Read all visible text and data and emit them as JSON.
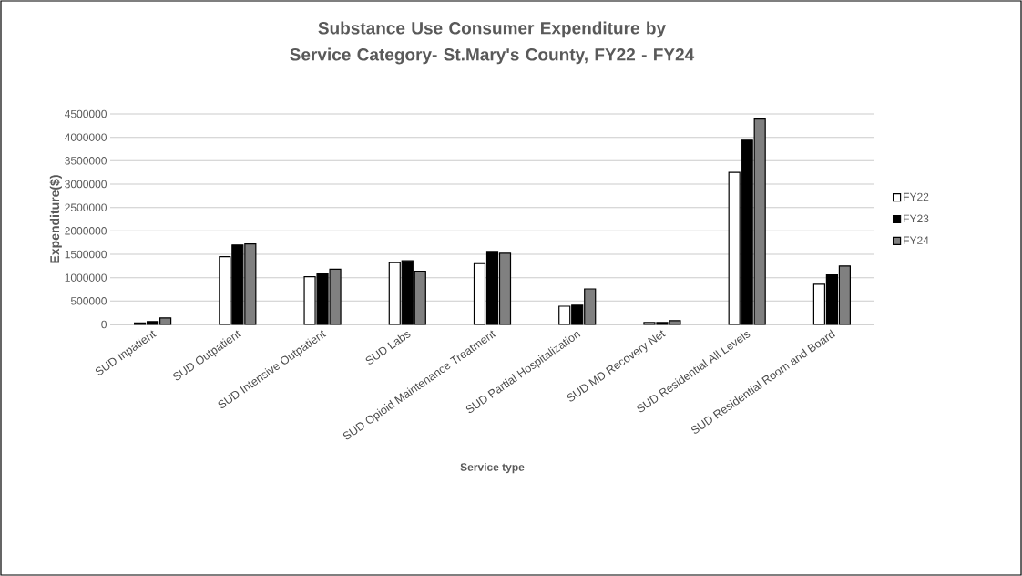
{
  "chart_data": {
    "type": "bar",
    "title": "Substance Use Consumer Expenditure by Service Category- St.Mary's County, FY22 - FY24",
    "xlabel": "Service type",
    "ylabel": "Expenditure($)",
    "categories": [
      "SUD Inpatient",
      "SUD Outpatient",
      "SUD Intensive Outpatient",
      "SUD Labs",
      "SUD Opioid Maintenance Treatment",
      "SUD Partial Hospitalization",
      "SUD MD Recovery Net",
      "SUD Residential All Levels",
      "SUD Residential Room and Board"
    ],
    "series": [
      {
        "name": "FY22",
        "color": "#ffffff",
        "values": [
          30000,
          1450000,
          1020000,
          1320000,
          1300000,
          390000,
          40000,
          3250000,
          860000
        ]
      },
      {
        "name": "FY23",
        "color": "#000000",
        "values": [
          60000,
          1700000,
          1100000,
          1360000,
          1560000,
          410000,
          40000,
          3940000,
          1060000
        ]
      },
      {
        "name": "FY24",
        "color": "#808080",
        "values": [
          140000,
          1720000,
          1180000,
          1140000,
          1520000,
          760000,
          80000,
          4390000,
          1250000
        ]
      }
    ],
    "ylim": [
      0,
      4500000
    ],
    "yticks": [
      0,
      500000,
      1000000,
      1500000,
      2000000,
      2500000,
      3000000,
      3500000,
      4000000,
      4500000
    ],
    "grid": "y",
    "legend": "right"
  }
}
